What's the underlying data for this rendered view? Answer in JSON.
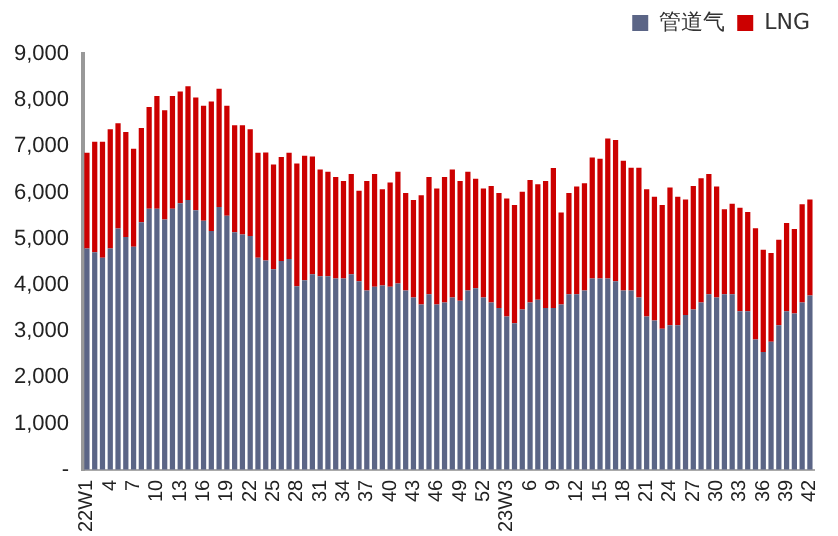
{
  "chart_data": {
    "type": "bar",
    "stacked": true,
    "categories": [
      "22W1",
      null,
      null,
      "4",
      null,
      null,
      "7",
      null,
      null,
      "10",
      null,
      null,
      "13",
      null,
      null,
      "16",
      null,
      null,
      "19",
      null,
      null,
      "22",
      null,
      null,
      "25",
      null,
      null,
      "28",
      null,
      null,
      "31",
      null,
      null,
      "34",
      null,
      null,
      "37",
      null,
      null,
      "40",
      null,
      null,
      "43",
      null,
      null,
      "46",
      null,
      null,
      "49",
      null,
      null,
      "52",
      null,
      null,
      "23W3",
      null,
      null,
      "6",
      null,
      null,
      "9",
      null,
      null,
      "12",
      null,
      null,
      "15",
      null,
      null,
      "18",
      null,
      null,
      "21",
      null,
      null,
      "24",
      null,
      null,
      "27",
      null,
      null,
      "30",
      null,
      null,
      "33",
      null,
      null,
      "36",
      null,
      null,
      "39",
      null,
      null,
      "42"
    ],
    "series": [
      {
        "name": "管道气",
        "color": "#5b6586",
        "values": [
          4790,
          4710,
          4590,
          4790,
          5220,
          5040,
          4830,
          5360,
          5650,
          5650,
          5420,
          5650,
          5770,
          5840,
          5620,
          5390,
          5170,
          5690,
          5500,
          5140,
          5090,
          5060,
          4590,
          4530,
          4340,
          4520,
          4560,
          3970,
          4100,
          4230,
          4190,
          4190,
          4140,
          4140,
          4230,
          4080,
          3880,
          3960,
          3990,
          3960,
          4030,
          3880,
          3730,
          3580,
          3800,
          3580,
          3620,
          3730,
          3660,
          3880,
          3930,
          3730,
          3620,
          3500,
          3320,
          3170,
          3470,
          3620,
          3680,
          3500,
          3500,
          3580,
          3800,
          3800,
          3880,
          4140,
          4140,
          4140,
          4080,
          3880,
          3880,
          3730,
          3320,
          3230,
          3050,
          3130,
          3130,
          3350,
          3470,
          3620,
          3800,
          3730,
          3800,
          3800,
          3430,
          3430,
          2820,
          2550,
          2770,
          3130,
          3430,
          3380,
          3620,
          3770
        ]
      },
      {
        "name": "LNG",
        "color": "#cc0000",
        "values": [
          2070,
          2390,
          2510,
          2580,
          2280,
          2270,
          2120,
          2040,
          2200,
          2440,
          2360,
          2440,
          2420,
          2460,
          2440,
          2490,
          2800,
          2560,
          2380,
          2320,
          2370,
          2310,
          2270,
          2340,
          2270,
          2250,
          2300,
          2660,
          2700,
          2550,
          2310,
          2260,
          2200,
          2110,
          2170,
          1960,
          2370,
          2440,
          2080,
          2260,
          2420,
          2110,
          2110,
          2360,
          2540,
          2510,
          2720,
          2770,
          2590,
          2570,
          2370,
          2360,
          2520,
          2490,
          2550,
          2560,
          2550,
          2650,
          2500,
          2750,
          3030,
          1990,
          2190,
          2330,
          2320,
          2620,
          2590,
          3030,
          3060,
          2810,
          2660,
          2810,
          2750,
          2680,
          2680,
          2980,
          2780,
          2500,
          2670,
          2690,
          2600,
          2400,
          1840,
          1960,
          2240,
          2150,
          2410,
          2210,
          1920,
          1850,
          1910,
          1830,
          2130,
          2080
        ]
      }
    ],
    "ylim": [
      0,
      9000
    ],
    "yticks": [
      {
        "value": 0,
        "label": "-"
      },
      {
        "value": 1000,
        "label": "1,000"
      },
      {
        "value": 2000,
        "label": "2,000"
      },
      {
        "value": 3000,
        "label": "3,000"
      },
      {
        "value": 4000,
        "label": "4,000"
      },
      {
        "value": 5000,
        "label": "5,000"
      },
      {
        "value": 6000,
        "label": "6,000"
      },
      {
        "value": 7000,
        "label": "7,000"
      },
      {
        "value": 8000,
        "label": "8,000"
      },
      {
        "value": 9000,
        "label": "9,000"
      }
    ],
    "grid": false,
    "legend": "top"
  }
}
